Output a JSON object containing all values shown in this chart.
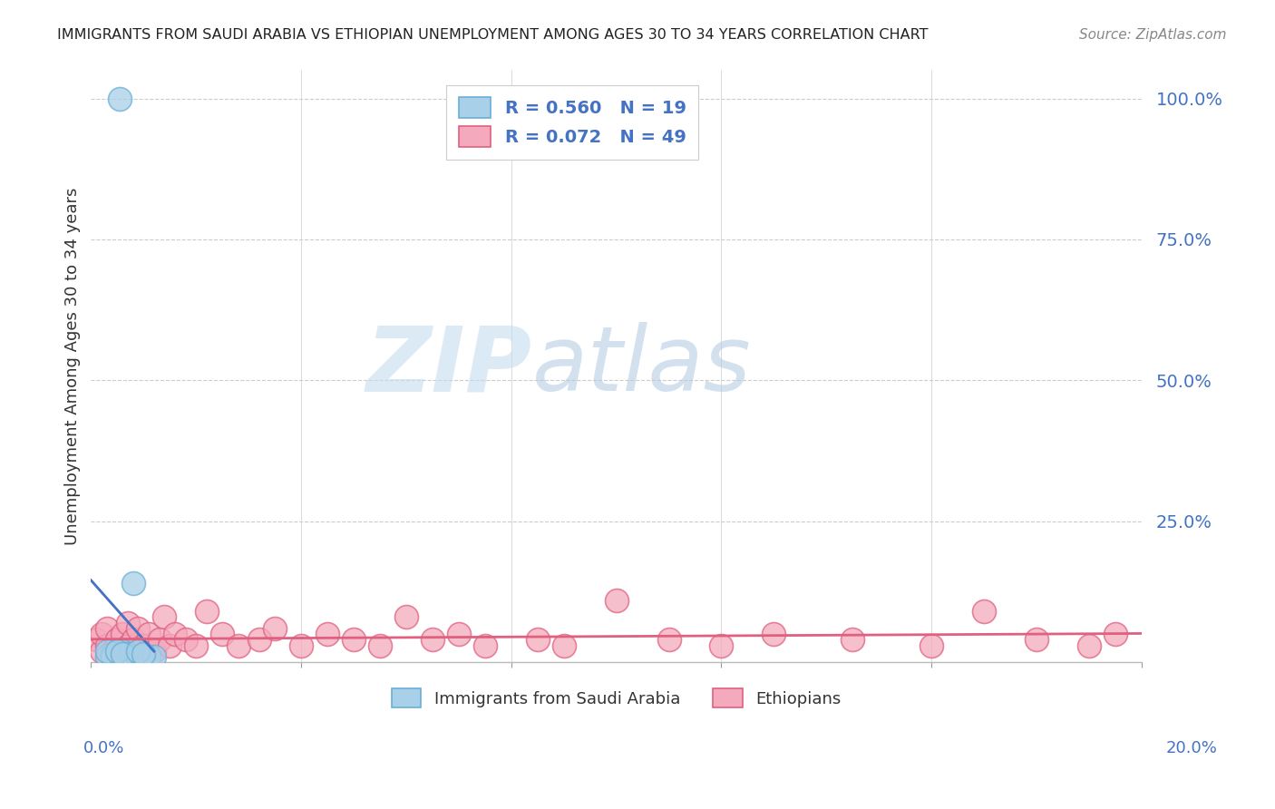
{
  "title": "IMMIGRANTS FROM SAUDI ARABIA VS ETHIOPIAN UNEMPLOYMENT AMONG AGES 30 TO 34 YEARS CORRELATION CHART",
  "source": "Source: ZipAtlas.com",
  "ylabel": "Unemployment Among Ages 30 to 34 years",
  "xlim": [
    0,
    0.2
  ],
  "ylim": [
    0,
    1.05
  ],
  "blue_R": 0.56,
  "blue_N": 19,
  "pink_R": 0.072,
  "pink_N": 49,
  "blue_color": "#A8D0E8",
  "blue_edge": "#6AAED6",
  "blue_line_color": "#4472C4",
  "pink_color": "#F4AABC",
  "pink_edge": "#E06080",
  "pink_line_color": "#E06080",
  "legend_label_blue": "Immigrants from Saudi Arabia",
  "legend_label_pink": "Ethiopians",
  "blue_x": [
    0.0055,
    0.003,
    0.004,
    0.005,
    0.006,
    0.007,
    0.007,
    0.008,
    0.008,
    0.009,
    0.01,
    0.011,
    0.012,
    0.004,
    0.003,
    0.005,
    0.006,
    0.009,
    0.01
  ],
  "blue_y": [
    1.0,
    0.01,
    0.015,
    0.01,
    0.02,
    0.01,
    0.015,
    0.01,
    0.14,
    0.01,
    0.01,
    0.01,
    0.01,
    0.01,
    0.02,
    0.02,
    0.015,
    0.02,
    0.015
  ],
  "pink_x": [
    0.001,
    0.002,
    0.002,
    0.003,
    0.003,
    0.004,
    0.005,
    0.006,
    0.006,
    0.007,
    0.007,
    0.008,
    0.008,
    0.009,
    0.009,
    0.01,
    0.011,
    0.012,
    0.013,
    0.014,
    0.015,
    0.016,
    0.018,
    0.02,
    0.022,
    0.025,
    0.028,
    0.032,
    0.035,
    0.04,
    0.045,
    0.05,
    0.055,
    0.06,
    0.065,
    0.07,
    0.075,
    0.085,
    0.09,
    0.1,
    0.11,
    0.12,
    0.13,
    0.145,
    0.16,
    0.17,
    0.18,
    0.19,
    0.195
  ],
  "pink_y": [
    0.04,
    0.02,
    0.05,
    0.03,
    0.06,
    0.02,
    0.04,
    0.015,
    0.05,
    0.03,
    0.07,
    0.02,
    0.04,
    0.015,
    0.06,
    0.03,
    0.05,
    0.02,
    0.04,
    0.08,
    0.03,
    0.05,
    0.04,
    0.03,
    0.09,
    0.05,
    0.03,
    0.04,
    0.06,
    0.03,
    0.05,
    0.04,
    0.03,
    0.08,
    0.04,
    0.05,
    0.03,
    0.04,
    0.03,
    0.11,
    0.04,
    0.03,
    0.05,
    0.04,
    0.03,
    0.09,
    0.04,
    0.03,
    0.05
  ],
  "background_color": "#FFFFFF",
  "grid_color": "#CCCCCC",
  "tick_color": "#4472C4",
  "ytick_labels": [
    "",
    "25.0%",
    "50.0%",
    "75.0%",
    "100.0%"
  ],
  "ytick_vals": [
    0.0,
    0.25,
    0.5,
    0.75,
    1.0
  ]
}
